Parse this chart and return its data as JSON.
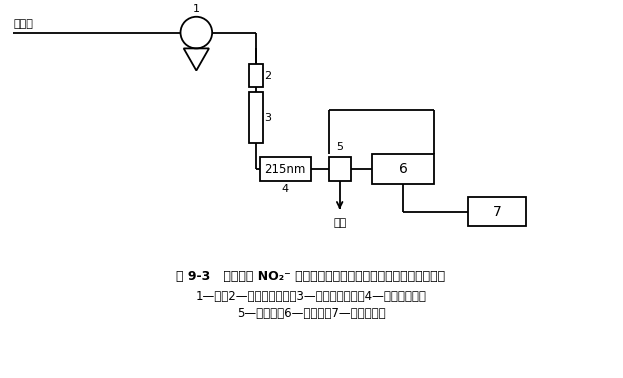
{
  "title_line1": "图 9-3   同时检测 NO₂⁻ 和其他阴离子时电导和紫外两种检测器的联接",
  "title_line2": "1—泵；2—阴离子保护柱；3—阴离子分离柱；4—紫外检测器；",
  "title_line3": "5—抑制器；6—电导池；7—电导检测器",
  "label_rinse": "淋洗液",
  "label_waste": "废液",
  "label_1": "1",
  "label_2": "2",
  "label_3": "3",
  "label_4": "4",
  "label_5": "5",
  "label_6": "6",
  "label_7": "7",
  "label_215nm": "215nm",
  "bg_color": "#ffffff",
  "line_color": "#000000",
  "text_color": "#000000"
}
